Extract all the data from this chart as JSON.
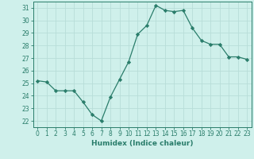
{
  "x": [
    0,
    1,
    2,
    3,
    4,
    5,
    6,
    7,
    8,
    9,
    10,
    11,
    12,
    13,
    14,
    15,
    16,
    17,
    18,
    19,
    20,
    21,
    22,
    23
  ],
  "y": [
    25.2,
    25.1,
    24.4,
    24.4,
    24.4,
    23.5,
    22.5,
    22.0,
    23.9,
    25.3,
    26.7,
    28.9,
    29.6,
    31.2,
    30.8,
    30.7,
    30.8,
    29.4,
    28.4,
    28.1,
    28.1,
    27.1,
    27.1,
    26.9
  ],
  "line_color": "#2a7d6b",
  "marker": "D",
  "marker_size": 2.2,
  "bg_color": "#cff0eb",
  "grid_color": "#b8ddd8",
  "xlabel": "Humidex (Indice chaleur)",
  "ylim": [
    21.5,
    31.5
  ],
  "xlim": [
    -0.5,
    23.5
  ],
  "yticks": [
    22,
    23,
    24,
    25,
    26,
    27,
    28,
    29,
    30,
    31
  ],
  "xticks": [
    0,
    1,
    2,
    3,
    4,
    5,
    6,
    7,
    8,
    9,
    10,
    11,
    12,
    13,
    14,
    15,
    16,
    17,
    18,
    19,
    20,
    21,
    22,
    23
  ],
  "tick_color": "#2a7d6b",
  "label_fontsize": 6.5,
  "tick_fontsize": 5.5,
  "spine_color": "#2a7d6b",
  "linewidth": 0.9
}
